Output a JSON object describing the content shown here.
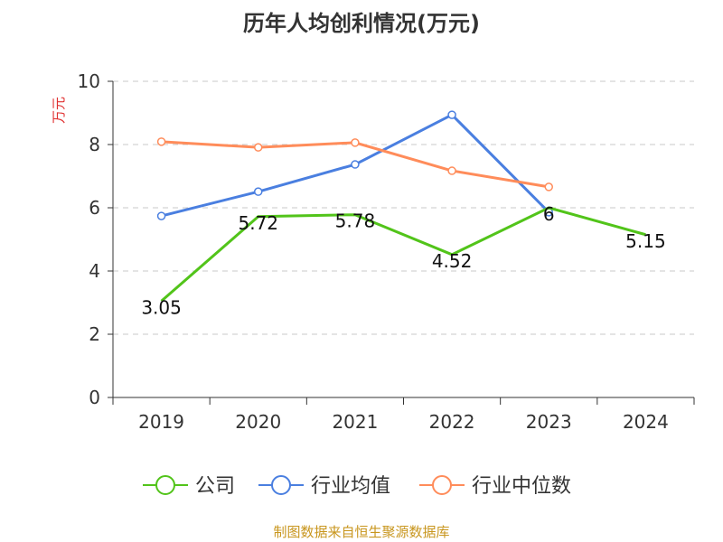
{
  "chart_data": {
    "type": "line",
    "title": "历年人均创利情况(万元)",
    "ylabel": "万元",
    "xlabel": "",
    "categories": [
      "2019",
      "2020",
      "2021",
      "2022",
      "2023",
      "2024"
    ],
    "ylim": [
      0,
      10
    ],
    "yticks": [
      0,
      2,
      4,
      6,
      8,
      10
    ],
    "grid": true,
    "legend_position": "bottom",
    "series": [
      {
        "name": "公司",
        "color": "#52c41a",
        "values": [
          3.05,
          5.72,
          5.78,
          4.52,
          6,
          5.15
        ],
        "labels": [
          "3.05",
          "5.72",
          "5.78",
          "4.52",
          "6",
          "5.15"
        ]
      },
      {
        "name": "行业均值",
        "color": "#4a7fe0",
        "values": [
          5.74,
          6.51,
          7.37,
          8.94,
          5.86,
          null
        ]
      },
      {
        "name": "行业中位数",
        "color": "#ff8c5a",
        "values": [
          8.09,
          7.91,
          8.06,
          7.17,
          6.66,
          null
        ]
      }
    ],
    "source": "制图数据来自恒生聚源数据库"
  }
}
